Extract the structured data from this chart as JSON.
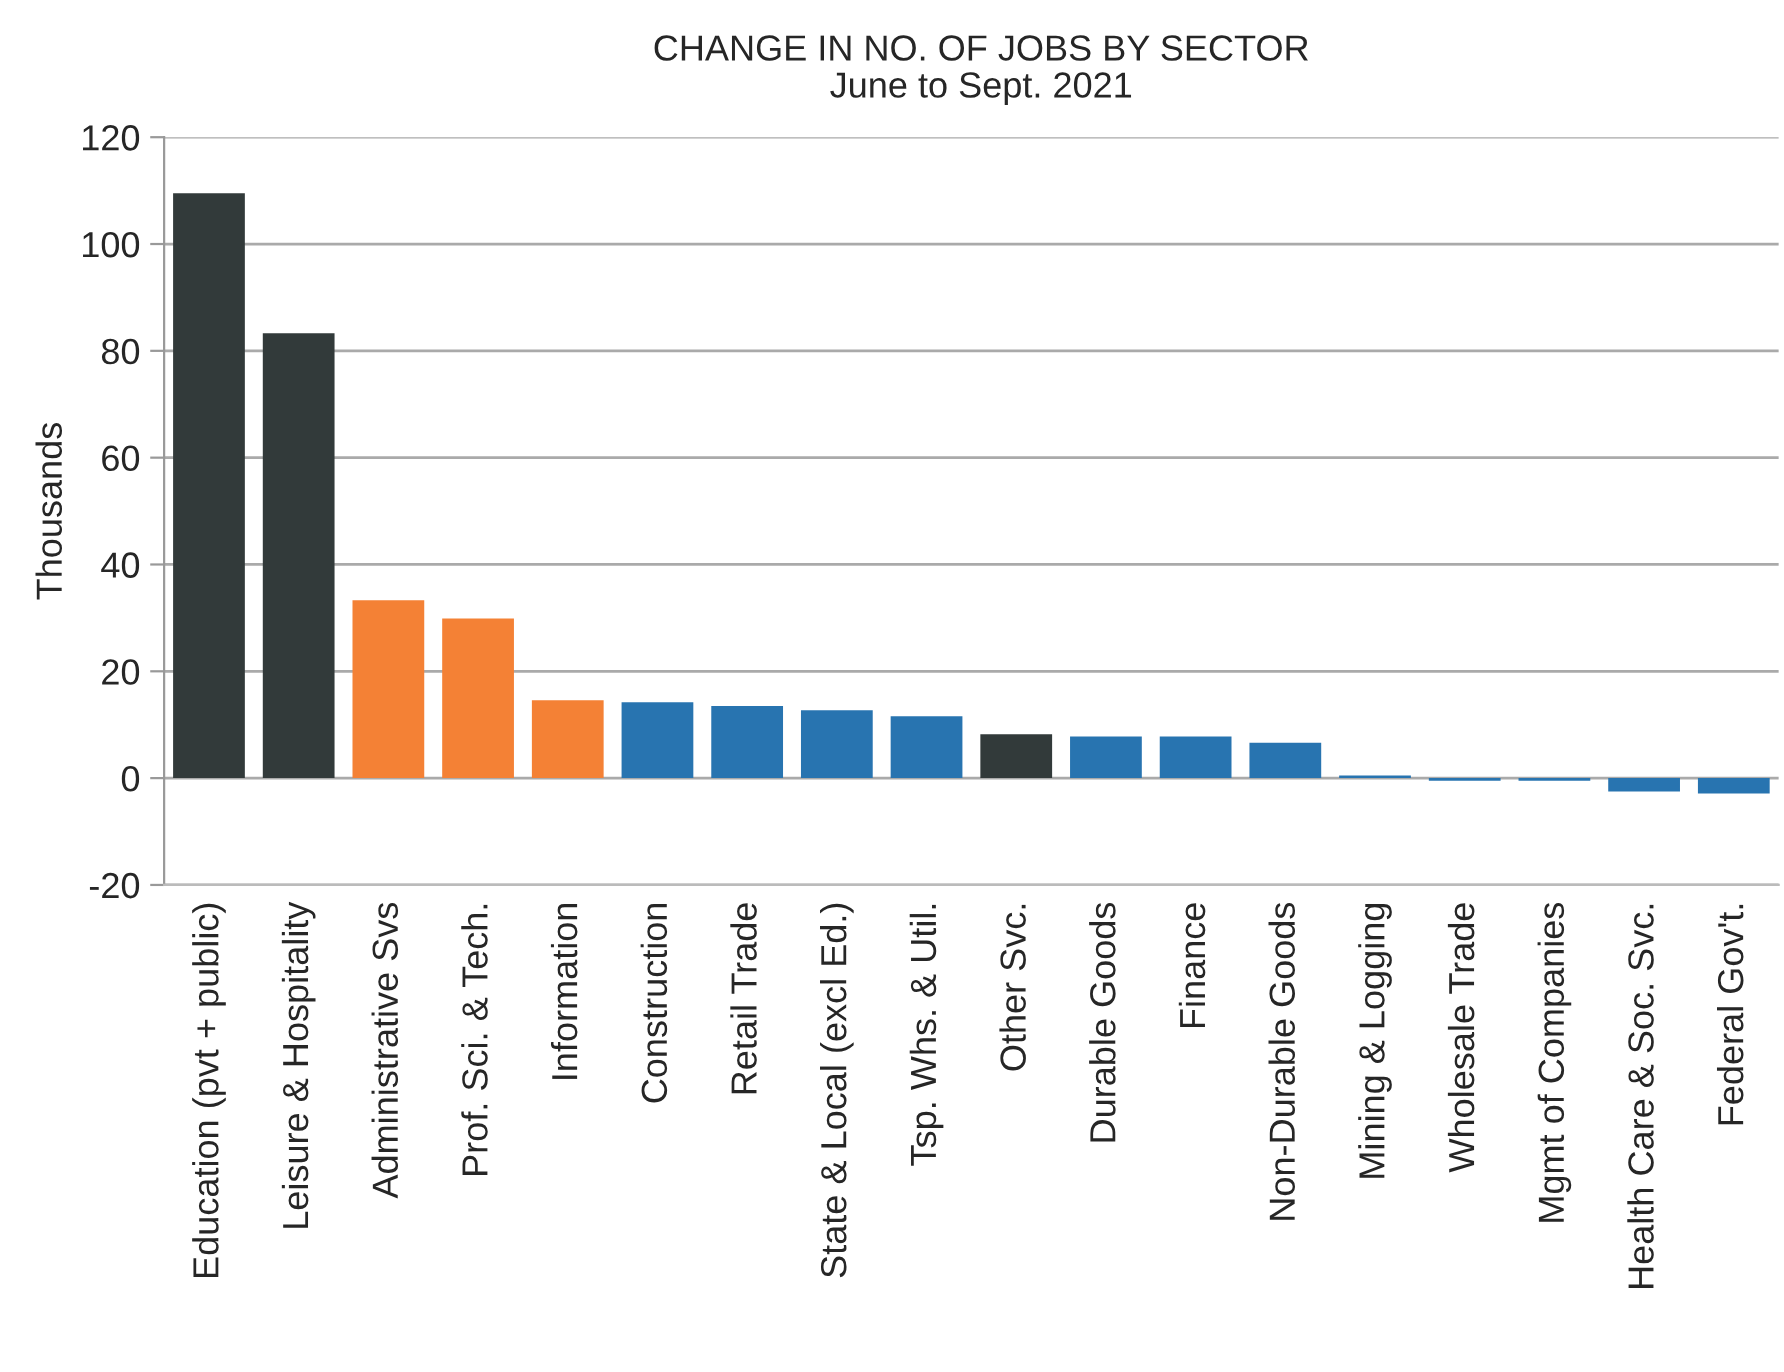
{
  "chart_data": {
    "type": "bar",
    "title": "CHANGE IN NO. OF JOBS BY SECTOR",
    "subtitle": "June to Sept. 2021",
    "ylabel": "Thousands",
    "categories": [
      "Education (pvt + public)",
      "Leisure & Hospitality",
      "Administrative Svs",
      "Prof. Sci. & Tech.",
      "Information",
      "Construction",
      "Retail Trade",
      "State & Local (excl Ed.)",
      "Tsp. Whs. & Util.",
      "Other Svc.",
      "Durable Goods",
      "Finance",
      "Non-Durable Goods",
      "Mining & Logging",
      "Wholesale Trade",
      "Mgmt of Companies",
      "Health Care & Soc. Svc.",
      "Federal Gov't."
    ],
    "values": [
      109.5,
      83.3,
      33.3,
      29.9,
      14.6,
      14.2,
      13.5,
      12.7,
      11.6,
      8.2,
      7.8,
      7.8,
      6.6,
      0.5,
      -0.5,
      -0.5,
      -2.5,
      -2.9
    ],
    "colors": [
      "#323a3a",
      "#323a3a",
      "#f48135",
      "#f48135",
      "#f48135",
      "#2874b0",
      "#2874b0",
      "#2874b0",
      "#2874b0",
      "#323a3a",
      "#2874b0",
      "#2874b0",
      "#2874b0",
      "#2874b0",
      "#2874b0",
      "#2874b0",
      "#2874b0",
      "#2874b0"
    ],
    "ylim": [
      -20,
      120
    ],
    "yticks": [
      -20,
      0,
      20,
      40,
      60,
      80,
      100,
      120
    ],
    "grid": "y"
  }
}
